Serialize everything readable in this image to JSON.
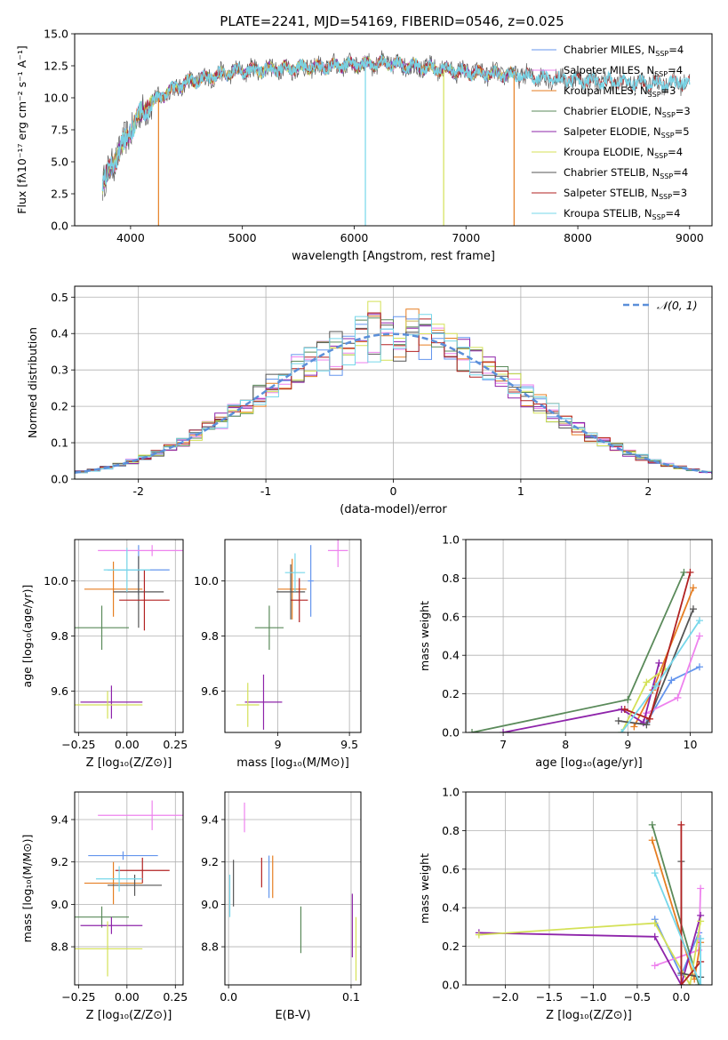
{
  "figure_title": "PLATE=2241, MJD=54169, FIBERID=0546, z=0.025",
  "colors": {
    "Chabrier MILES": "#6495ed",
    "Salpeter MILES": "#ee82ee",
    "Kroupa MILES": "#e67e22",
    "Chabrier ELODIE": "#5a8a5a",
    "Salpeter ELODIE": "#8e24aa",
    "Kroupa ELODIE": "#d4e157",
    "Chabrier STELIB": "#555555",
    "Salpeter STELIB": "#b22222",
    "Kroupa STELIB": "#76d7ea",
    "normal": "#5b8fd9"
  },
  "chart_data": [
    {
      "id": "spectrum",
      "type": "line",
      "title": "PLATE=2241, MJD=54169, FIBERID=0546, z=0.025",
      "xlabel": "wavelength [Angstrom, rest frame]",
      "ylabel": "Flux [fλ10⁻¹⁷ erg cm⁻² s⁻¹ A⁻¹]",
      "xlim": [
        3500,
        9200
      ],
      "ylim": [
        0,
        15
      ],
      "xticks": [
        4000,
        5000,
        6000,
        7000,
        8000,
        9000
      ],
      "yticks": [
        0.0,
        2.5,
        5.0,
        7.5,
        10.0,
        12.5,
        15.0
      ],
      "grid": false,
      "legend_position": "right",
      "legend": [
        {
          "label": "Chabrier MILES, N",
          "sub": "SSP",
          "tail": "=4"
        },
        {
          "label": "Salpeter MILES, N",
          "sub": "SSP",
          "tail": "=4"
        },
        {
          "label": "Kroupa MILES, N",
          "sub": "SSP",
          "tail": "=3"
        },
        {
          "label": "Chabrier ELODIE, N",
          "sub": "SSP",
          "tail": "=3"
        },
        {
          "label": "Salpeter ELODIE, N",
          "sub": "SSP",
          "tail": "=5"
        },
        {
          "label": "Kroupa ELODIE, N",
          "sub": "SSP",
          "tail": "=4"
        },
        {
          "label": "Chabrier STELIB, N",
          "sub": "SSP",
          "tail": "=4"
        },
        {
          "label": "Salpeter STELIB, N",
          "sub": "SSP",
          "tail": "=3"
        },
        {
          "label": "Kroupa STELIB, N",
          "sub": "SSP",
          "tail": "=4"
        }
      ],
      "continuum": {
        "x": [
          3750,
          3850,
          3950,
          4050,
          4150,
          4300,
          4500,
          4700,
          4900,
          5100,
          5400,
          5700,
          6000,
          6300,
          6600,
          7000,
          7400,
          7800,
          8200,
          8600,
          9000
        ],
        "y": [
          3.2,
          5.0,
          6.6,
          8.3,
          9.3,
          10.3,
          11.2,
          11.6,
          12.0,
          12.2,
          12.3,
          12.4,
          12.6,
          12.7,
          12.4,
          12.0,
          11.8,
          11.5,
          11.3,
          11.1,
          11.2
        ]
      },
      "dips": [
        {
          "x": 4250,
          "y": 0,
          "series": "Kroupa MILES"
        },
        {
          "x": 6100,
          "y": 0,
          "series": "Kroupa STELIB"
        },
        {
          "x": 6800,
          "y": 0,
          "series": "Kroupa ELODIE"
        },
        {
          "x": 7430,
          "y": 0,
          "series": "Kroupa MILES"
        }
      ]
    },
    {
      "id": "residuals",
      "type": "histogram",
      "xlabel": "(data-model)/error",
      "ylabel": "Normed distribution",
      "xlim": [
        -2.5,
        2.5
      ],
      "ylim": [
        0,
        0.53
      ],
      "xticks": [
        -2,
        -1,
        0,
        1,
        2
      ],
      "yticks": [
        0.0,
        0.1,
        0.2,
        0.3,
        0.4,
        0.5
      ],
      "grid": true,
      "legend_position": "top-right",
      "legend": [
        "𝒩(0, 1)"
      ],
      "bin_width": 0.1,
      "reference_curve": "standard normal pdf"
    },
    {
      "id": "age_vs_Z",
      "type": "errorbar",
      "xlabel": "Z [log₁₀(Z/Z⊙)]",
      "ylabel": "age  [log₁₀(age/yr)]",
      "xlim": [
        -0.27,
        0.29
      ],
      "ylim": [
        9.45,
        10.15
      ],
      "xticks": [
        -0.25,
        0.0,
        0.25
      ],
      "xticklabels": [
        "−0.25",
        "0.00",
        "0.25"
      ],
      "yticks": [
        9.6,
        9.8,
        10.0
      ],
      "grid": true,
      "points": [
        {
          "series": "Chabrier MILES",
          "x": 0.06,
          "xerr": 0.16,
          "y": 10.04,
          "yerr": 0.09
        },
        {
          "series": "Salpeter MILES",
          "x": 0.13,
          "xerr": 0.28,
          "y": 10.11,
          "yerr": 0.02
        },
        {
          "series": "Kroupa MILES",
          "x": -0.07,
          "xerr": 0.15,
          "y": 9.97,
          "yerr": 0.1
        },
        {
          "series": "Chabrier ELODIE",
          "x": -0.13,
          "xerr": 0.14,
          "y": 9.83,
          "yerr": 0.08
        },
        {
          "series": "Salpeter ELODIE",
          "x": -0.08,
          "xerr": 0.16,
          "y": 9.56,
          "yerr": 0.06
        },
        {
          "series": "Kroupa ELODIE",
          "x": -0.1,
          "xerr": 0.18,
          "y": 9.55,
          "yerr": 0.05
        },
        {
          "series": "Chabrier STELIB",
          "x": 0.06,
          "xerr": 0.13,
          "y": 9.96,
          "yerr": 0.13
        },
        {
          "series": "Salpeter STELIB",
          "x": 0.09,
          "xerr": 0.13,
          "y": 9.93,
          "yerr": 0.11
        },
        {
          "series": "Kroupa STELIB",
          "x": 0.0,
          "xerr": 0.12,
          "y": 10.04,
          "yerr": 0.08
        }
      ]
    },
    {
      "id": "age_vs_mass",
      "type": "errorbar",
      "xlabel": "mass [log₁₀(M/M⊙)]",
      "xlim": [
        8.63,
        9.58
      ],
      "ylim": [
        9.45,
        10.15
      ],
      "xticks": [
        9.0,
        9.5
      ],
      "yticks": [
        9.6,
        9.8,
        10.0
      ],
      "grid": true,
      "points": [
        {
          "series": "Chabrier MILES",
          "x": 9.23,
          "xerr": 0.02,
          "y": 10.0,
          "yerr": 0.13
        },
        {
          "series": "Salpeter MILES",
          "x": 9.42,
          "xerr": 0.07,
          "y": 10.11,
          "yerr": 0.06
        },
        {
          "series": "Kroupa MILES",
          "x": 9.1,
          "xerr": 0.1,
          "y": 9.97,
          "yerr": 0.11
        },
        {
          "series": "Chabrier ELODIE",
          "x": 8.94,
          "xerr": 0.1,
          "y": 9.83,
          "yerr": 0.08
        },
        {
          "series": "Salpeter ELODIE",
          "x": 8.9,
          "xerr": 0.13,
          "y": 9.56,
          "yerr": 0.1
        },
        {
          "series": "Kroupa ELODIE",
          "x": 8.79,
          "xerr": 0.08,
          "y": 9.55,
          "yerr": 0.08
        },
        {
          "series": "Chabrier STELIB",
          "x": 9.09,
          "xerr": 0.1,
          "y": 9.96,
          "yerr": 0.1
        },
        {
          "series": "Salpeter STELIB",
          "x": 9.15,
          "xerr": 0.06,
          "y": 9.93,
          "yerr": 0.08
        },
        {
          "series": "Kroupa STELIB",
          "x": 9.12,
          "xerr": 0.07,
          "y": 10.03,
          "yerr": 0.07
        }
      ]
    },
    {
      "id": "weight_vs_age",
      "type": "line",
      "xlabel": "age  [log₁₀(age/yr)]",
      "ylabel": "mass weight",
      "xlim": [
        6.4,
        10.35
      ],
      "ylim": [
        0,
        1.0
      ],
      "xticks": [
        7,
        8,
        9,
        10
      ],
      "yticks": [
        0.0,
        0.2,
        0.4,
        0.6,
        0.8,
        1.0
      ],
      "grid": true,
      "series": [
        {
          "name": "Chabrier MILES",
          "x": [
            9.3,
            9.7,
            10.15
          ],
          "y": [
            0.05,
            0.27,
            0.34
          ]
        },
        {
          "name": "Salpeter MILES",
          "x": [
            9.3,
            9.8,
            10.15
          ],
          "y": [
            0.1,
            0.18,
            0.5
          ]
        },
        {
          "name": "Kroupa MILES",
          "x": [
            9.1,
            9.4,
            10.05
          ],
          "y": [
            0.03,
            0.22,
            0.75
          ]
        },
        {
          "name": "Chabrier ELODIE",
          "x": [
            6.5,
            9.0,
            9.9
          ],
          "y": [
            0.0,
            0.17,
            0.83
          ]
        },
        {
          "name": "Salpeter ELODIE",
          "x": [
            7.0,
            8.9,
            9.25,
            9.5
          ],
          "y": [
            0.0,
            0.12,
            0.05,
            0.36
          ]
        },
        {
          "name": "Kroupa ELODIE",
          "x": [
            8.9,
            9.3,
            9.6
          ],
          "y": [
            0.0,
            0.26,
            0.33
          ]
        },
        {
          "name": "Chabrier STELIB",
          "x": [
            8.85,
            9.3,
            10.05
          ],
          "y": [
            0.06,
            0.04,
            0.64
          ]
        },
        {
          "name": "Salpeter STELIB",
          "x": [
            8.95,
            9.35,
            10.0
          ],
          "y": [
            0.12,
            0.07,
            0.83
          ]
        },
        {
          "name": "Kroupa STELIB",
          "x": [
            8.9,
            9.45,
            10.15
          ],
          "y": [
            0.0,
            0.24,
            0.58
          ]
        }
      ]
    },
    {
      "id": "mass_vs_Z",
      "type": "errorbar",
      "xlabel": "Z [log₁₀(Z/Z⊙)]",
      "ylabel": "mass [log₁₀(M/M⊙)]",
      "xlim": [
        -0.27,
        0.29
      ],
      "ylim": [
        8.62,
        9.53
      ],
      "xticks": [
        -0.25,
        0.0,
        0.25
      ],
      "xticklabels": [
        "−0.25",
        "0.00",
        "0.25"
      ],
      "yticks": [
        8.8,
        9.0,
        9.2,
        9.4
      ],
      "grid": true,
      "points": [
        {
          "series": "Chabrier MILES",
          "x": -0.02,
          "xerr": 0.18,
          "y": 9.23,
          "yerr": 0.02
        },
        {
          "series": "Salpeter MILES",
          "x": 0.13,
          "xerr": 0.28,
          "y": 9.42,
          "yerr": 0.07
        },
        {
          "series": "Kroupa MILES",
          "x": -0.07,
          "xerr": 0.15,
          "y": 9.1,
          "yerr": 0.1
        },
        {
          "series": "Chabrier ELODIE",
          "x": -0.13,
          "xerr": 0.14,
          "y": 8.94,
          "yerr": 0.05
        },
        {
          "series": "Salpeter ELODIE",
          "x": -0.08,
          "xerr": 0.16,
          "y": 8.9,
          "yerr": 0.04
        },
        {
          "series": "Kroupa ELODIE",
          "x": -0.1,
          "xerr": 0.18,
          "y": 8.79,
          "yerr": 0.13
        },
        {
          "series": "Chabrier STELIB",
          "x": 0.04,
          "xerr": 0.14,
          "y": 9.09,
          "yerr": 0.05
        },
        {
          "series": "Salpeter STELIB",
          "x": 0.08,
          "xerr": 0.14,
          "y": 9.16,
          "yerr": 0.06
        },
        {
          "series": "Kroupa STELIB",
          "x": -0.04,
          "xerr": 0.12,
          "y": 9.12,
          "yerr": 0.06
        }
      ]
    },
    {
      "id": "mass_vs_ebv",
      "type": "errorbar",
      "xlabel": "E(B-V)",
      "xlim": [
        -0.003,
        0.108
      ],
      "ylim": [
        8.62,
        9.53
      ],
      "xticks": [
        0.0,
        0.1
      ],
      "xticklabels": [
        "0.0",
        "0.1"
      ],
      "yticks": [
        8.8,
        9.0,
        9.2,
        9.4
      ],
      "grid": true,
      "points": [
        {
          "series": "Chabrier MILES",
          "x": 0.033,
          "y": 9.13,
          "yerr": 0.1
        },
        {
          "series": "Salpeter MILES",
          "x": 0.013,
          "y": 9.41,
          "yerr": 0.07
        },
        {
          "series": "Kroupa MILES",
          "x": 0.036,
          "y": 9.13,
          "yerr": 0.1
        },
        {
          "series": "Chabrier ELODIE",
          "x": 0.059,
          "y": 8.88,
          "yerr": 0.11
        },
        {
          "series": "Salpeter ELODIE",
          "x": 0.101,
          "y": 8.9,
          "yerr": 0.15
        },
        {
          "series": "Kroupa ELODIE",
          "x": 0.104,
          "y": 8.79,
          "yerr": 0.15
        },
        {
          "series": "Chabrier STELIB",
          "x": 0.004,
          "y": 9.1,
          "yerr": 0.11
        },
        {
          "series": "Salpeter STELIB",
          "x": 0.027,
          "y": 9.15,
          "yerr": 0.07
        },
        {
          "series": "Kroupa STELIB",
          "x": 0.001,
          "y": 9.04,
          "yerr": 0.1
        }
      ]
    },
    {
      "id": "weight_vs_Z",
      "type": "line",
      "xlabel": "Z [log₁₀(Z/Z⊙)]",
      "ylabel": "mass weight",
      "xlim": [
        -2.45,
        0.35
      ],
      "ylim": [
        0,
        1.0
      ],
      "xticks": [
        -2.0,
        -1.5,
        -1.0,
        -0.5,
        0.0
      ],
      "xticklabels": [
        "−2.0",
        "−1.5",
        "−1.0",
        "−0.5",
        "0.0"
      ],
      "yticks": [
        0.0,
        0.2,
        0.4,
        0.6,
        0.8,
        1.0
      ],
      "grid": true,
      "series": [
        {
          "name": "Chabrier MILES",
          "x": [
            -0.3,
            0.0,
            0.2
          ],
          "y": [
            0.34,
            0.05,
            0.27
          ]
        },
        {
          "name": "Salpeter MILES",
          "x": [
            -0.3,
            0.2,
            0.22
          ],
          "y": [
            0.1,
            0.18,
            0.5
          ]
        },
        {
          "name": "Kroupa MILES",
          "x": [
            -0.33,
            0.15,
            0.22
          ],
          "y": [
            0.75,
            0.03,
            0.22
          ]
        },
        {
          "name": "Chabrier ELODIE",
          "x": [
            -0.33,
            0.2
          ],
          "y": [
            0.83,
            0.0
          ]
        },
        {
          "name": "Salpeter ELODIE",
          "x": [
            -2.3,
            -0.3,
            0.0,
            0.22
          ],
          "y": [
            0.27,
            0.25,
            0.0,
            0.36
          ]
        },
        {
          "name": "Kroupa ELODIE",
          "x": [
            -2.3,
            -0.3,
            0.1,
            0.22
          ],
          "y": [
            0.26,
            0.32,
            0.0,
            0.33
          ]
        },
        {
          "name": "Chabrier STELIB",
          "x": [
            0.0,
            0.0,
            0.22
          ],
          "y": [
            0.64,
            0.06,
            0.04
          ]
        },
        {
          "name": "Salpeter STELIB",
          "x": [
            0.0,
            0.0,
            0.22
          ],
          "y": [
            0.83,
            0.0,
            0.12
          ]
        },
        {
          "name": "Kroupa STELIB",
          "x": [
            -0.3,
            0.22,
            0.22
          ],
          "y": [
            0.58,
            0.0,
            0.24
          ]
        }
      ]
    }
  ]
}
